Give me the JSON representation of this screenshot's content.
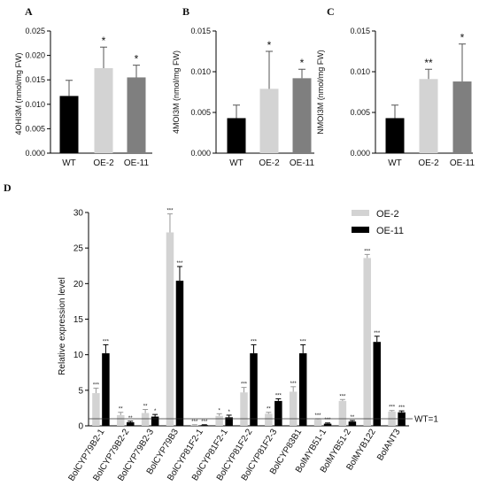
{
  "chart_data": [
    {
      "panel_label": "A",
      "type": "bar",
      "ylabel": "4OHI3M (nmol/mg FW)",
      "categories": [
        "WT",
        "OE-2",
        "OE-11"
      ],
      "values": [
        0.0117,
        0.0174,
        0.0155
      ],
      "errors": [
        0.0032,
        0.0043,
        0.0025
      ],
      "significance": [
        "",
        "*",
        "*"
      ],
      "colors": [
        "#000000",
        "#d3d3d3",
        "#7f7f7f"
      ],
      "ylim": [
        0,
        0.025
      ],
      "yticks": [
        "0.000",
        "0.005",
        "0.010",
        "0.015",
        "0.020",
        "0.025"
      ]
    },
    {
      "panel_label": "B",
      "type": "bar",
      "ylabel": "4MOI3M (nmol/mg FW)",
      "categories": [
        "WT",
        "OE-2",
        "OE-11"
      ],
      "values": [
        0.0043,
        0.0079,
        0.0092
      ],
      "errors": [
        0.0016,
        0.0046,
        0.0011
      ],
      "significance": [
        "",
        "*",
        "*"
      ],
      "colors": [
        "#000000",
        "#d3d3d3",
        "#7f7f7f"
      ],
      "ylim": [
        0,
        0.015
      ],
      "yticks": [
        "0.000",
        "0.005",
        "0.010",
        "0.015"
      ]
    },
    {
      "panel_label": "C",
      "type": "bar",
      "ylabel": "NMOI3M (nmol/mg FW)",
      "categories": [
        "WT",
        "OE-2",
        "OE-11"
      ],
      "values": [
        0.0043,
        0.0091,
        0.0088
      ],
      "errors": [
        0.0016,
        0.0012,
        0.0046
      ],
      "significance": [
        "",
        "**",
        "*"
      ],
      "colors": [
        "#000000",
        "#d3d3d3",
        "#7f7f7f"
      ],
      "ylim": [
        0,
        0.015
      ],
      "yticks": [
        "0.000",
        "0.005",
        "0.010",
        "0.015"
      ]
    },
    {
      "panel_label": "D",
      "type": "bar",
      "ylabel": "Relative expression level",
      "ylim": [
        0,
        30
      ],
      "yticks": [
        "0",
        "5",
        "10",
        "15",
        "20",
        "25",
        "30"
      ],
      "legend_position": "top-right",
      "reference_line": {
        "value": 1,
        "label": "WT=1"
      },
      "categories": [
        "BolCYP79B2-1",
        "BolCYP79B2-2",
        "BolCYP79B2-3",
        "BolCYP79B3",
        "BolCYP81F2-1",
        "BolCYP81F2-1",
        "BolCYP81F2-2",
        "BolCYP81F2-3",
        "BolCYP83B1",
        "BolMYB51-1",
        "BolMYB51-2",
        "BolMYB122",
        "BolANT3"
      ],
      "series": [
        {
          "name": "OE-2",
          "color": "#d3d3d3",
          "values": [
            4.6,
            1.5,
            1.8,
            27.2,
            0.1,
            1.4,
            4.7,
            1.7,
            4.8,
            0.9,
            3.5,
            23.6,
            2.0
          ],
          "errors": [
            0.7,
            0.4,
            0.5,
            2.6,
            0.05,
            0.3,
            0.7,
            0.2,
            0.7,
            0.1,
            0.2,
            0.5,
            0.15
          ],
          "significance": [
            "***",
            "**",
            "**",
            "***",
            "***",
            "*",
            "***",
            "**",
            "***",
            "***",
            "***",
            "***",
            "***"
          ]
        },
        {
          "name": "OE-11",
          "color": "#000000",
          "values": [
            10.2,
            0.5,
            1.3,
            20.4,
            0.1,
            1.2,
            10.2,
            3.5,
            10.2,
            0.3,
            0.6,
            11.8,
            1.9
          ],
          "errors": [
            1.2,
            0.15,
            0.3,
            2.0,
            0.05,
            0.3,
            1.2,
            0.3,
            1.2,
            0.1,
            0.15,
            0.8,
            0.2
          ],
          "significance": [
            "***",
            "**",
            "*",
            "***",
            "***",
            "*",
            "***",
            "***",
            "***",
            "***",
            "**",
            "***",
            "***"
          ]
        }
      ]
    }
  ]
}
